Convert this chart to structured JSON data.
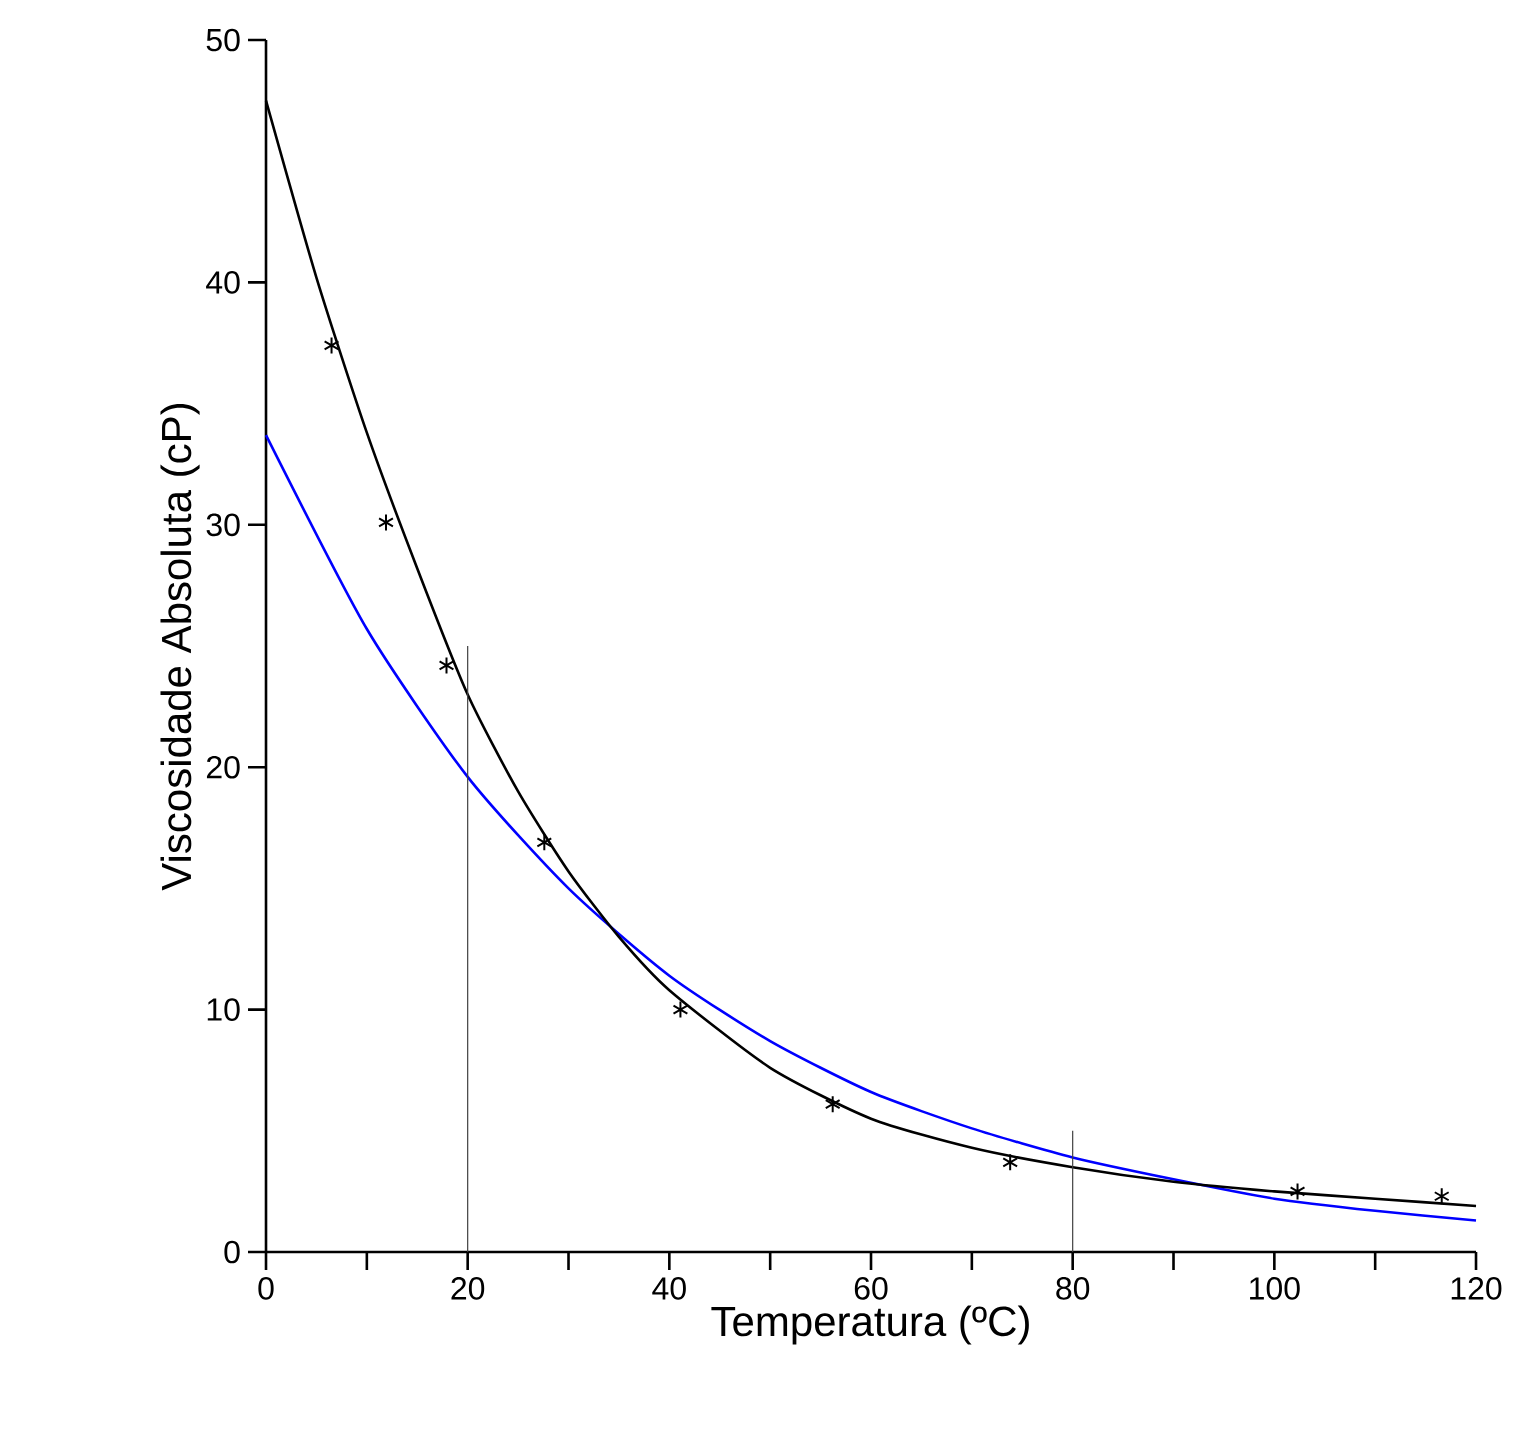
{
  "chart_data": {
    "type": "line",
    "xlabel": "Temperatura (ºC)",
    "ylabel": "Viscosidade Absoluta (cP)",
    "xlim": [
      0,
      120
    ],
    "ylim": [
      0,
      50
    ],
    "xticks": [
      0,
      20,
      40,
      60,
      80,
      100,
      120
    ],
    "yticks": [
      0,
      10,
      20,
      30,
      40,
      50
    ],
    "series": [
      {
        "color": "#0000ff",
        "x": [
          0,
          10,
          20,
          30,
          40,
          50,
          60,
          70,
          80,
          90,
          100,
          110,
          120
        ],
        "values": [
          33.7,
          25.7,
          19.6,
          15.0,
          11.4,
          8.7,
          6.6,
          5.1,
          3.9,
          3.0,
          2.2,
          1.7,
          1.3
        ]
      },
      {
        "color": "#000000",
        "x": [
          0,
          5,
          10,
          15,
          20,
          25,
          30,
          35,
          40,
          50,
          60,
          70,
          80,
          90,
          100,
          110,
          120
        ],
        "values": [
          47.5,
          40.2,
          33.8,
          28.2,
          23.0,
          19.0,
          15.7,
          13.0,
          10.8,
          7.6,
          5.5,
          4.3,
          3.5,
          2.9,
          2.5,
          2.2,
          1.9
        ]
      },
      {
        "type": "scatter",
        "color": "#000000",
        "marker": "cross",
        "x": [
          6.5,
          11.9,
          17.9,
          27.6,
          41.1,
          56.2,
          73.8,
          102.3,
          116.6
        ],
        "values": [
          37.4,
          30.1,
          24.2,
          16.9,
          10.0,
          6.1,
          3.7,
          2.5,
          2.3
        ]
      },
      {
        "color": "#404040",
        "x": [
          20,
          20
        ],
        "values": [
          0,
          25
        ]
      },
      {
        "color": "#404040",
        "x": [
          80,
          80
        ],
        "values": [
          0,
          5
        ]
      }
    ]
  }
}
